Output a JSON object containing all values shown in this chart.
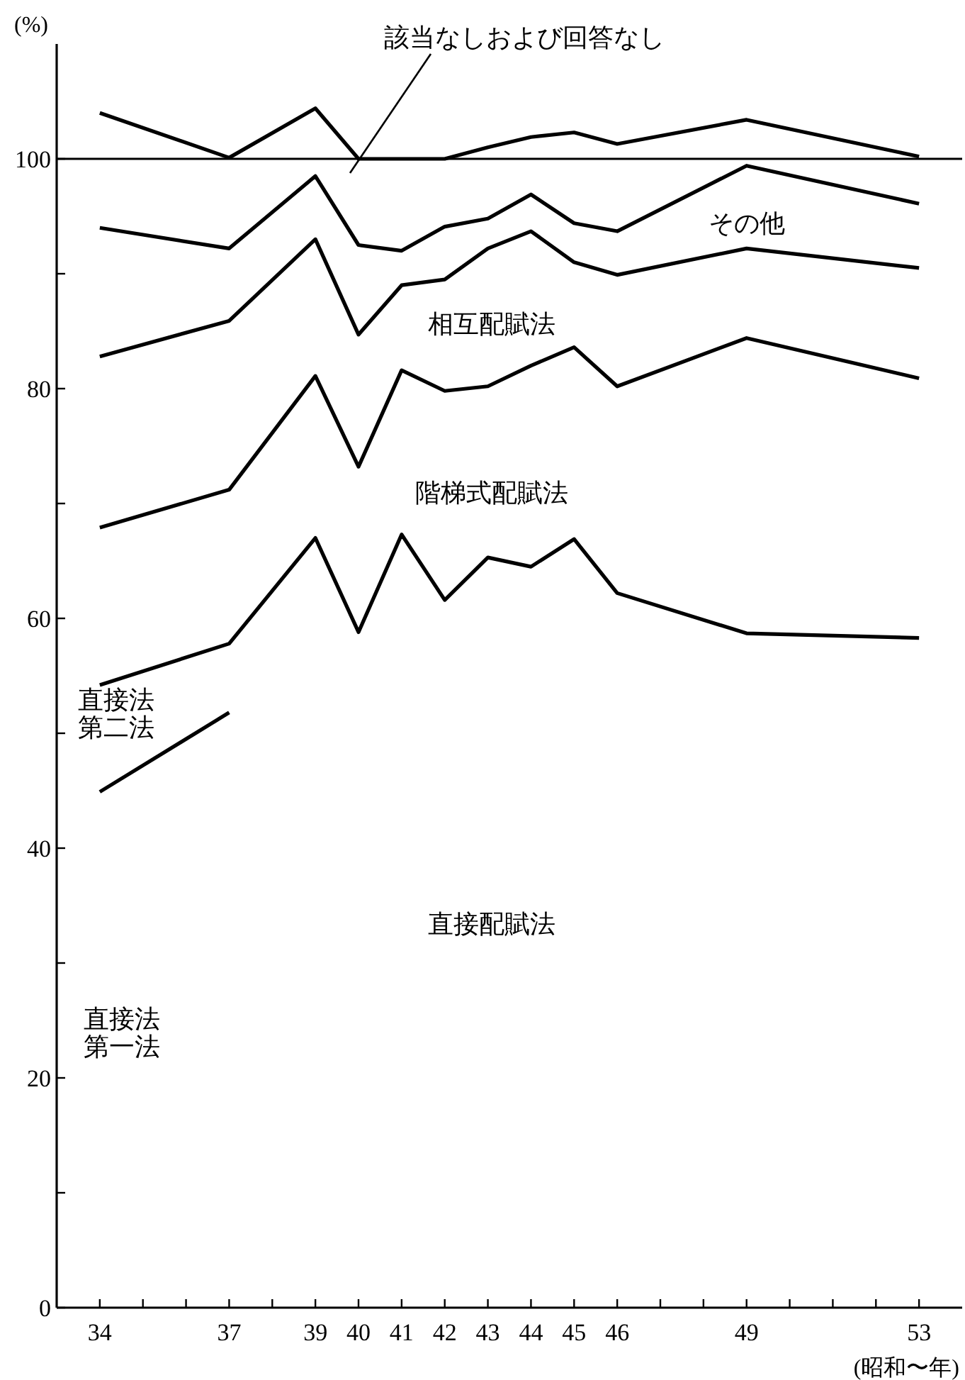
{
  "chart_data": {
    "type": "line",
    "ylabel": "(%)",
    "xlabel": "(昭和〜年)",
    "x": [
      34,
      37,
      39,
      40,
      41,
      42,
      43,
      44,
      45,
      46,
      49,
      53
    ],
    "series": [
      {
        "color": "#000000",
        "values": [
          104.0,
          100.1,
          104.4,
          100,
          100,
          100,
          101.0,
          101.9,
          102.3,
          101.3,
          103.4,
          100.2
        ]
      },
      {
        "color": "#000000",
        "values": [
          94.0,
          92.2,
          98.5,
          92.5,
          92.0,
          94.1,
          94.8,
          96.9,
          94.4,
          93.7,
          99.4,
          96.1
        ]
      },
      {
        "color": "#000000",
        "values": [
          82.8,
          85.9,
          93.0,
          84.7,
          89.0,
          89.5,
          92.2,
          93.7,
          91.0,
          89.9,
          92.2,
          90.5
        ]
      },
      {
        "color": "#000000",
        "values": [
          67.9,
          71.2,
          81.1,
          73.2,
          81.6,
          79.8,
          80.2,
          82.0,
          83.6,
          80.2,
          84.4,
          80.9
        ]
      },
      {
        "color": "#000000",
        "values": [
          54.2,
          57.8,
          67.0,
          58.8,
          67.3,
          61.6,
          65.3,
          64.5,
          66.9,
          62.2,
          58.7,
          58.3
        ]
      },
      {
        "color": "#000000",
        "x": [
          34,
          37
        ],
        "values": [
          44.9,
          51.8
        ]
      }
    ],
    "ref_lines": [
      {
        "axis": "y",
        "value": 100,
        "color": "#000000"
      }
    ],
    "annotations": [
      "該当なしおよび回答なし",
      "その他",
      "相互配賦法",
      "階梯式配賦法",
      "直接法第二法",
      "直接配賦法",
      "直接法第一法"
    ],
    "xlim": [
      33,
      54
    ],
    "ylim": [
      0,
      110
    ],
    "xticks": [
      34,
      {
        "value": 35,
        "label": null
      },
      {
        "value": 36,
        "label": null
      },
      37,
      {
        "value": 38,
        "label": null
      },
      39,
      40,
      41,
      42,
      43,
      44,
      45,
      46,
      {
        "value": 47,
        "label": null
      },
      {
        "value": 48,
        "label": null
      },
      49,
      {
        "value": 50,
        "label": null
      },
      {
        "value": 51,
        "label": null
      },
      {
        "value": 52,
        "label": null
      },
      53
    ],
    "yticks": [
      0,
      {
        "value": 10,
        "label": null
      },
      20,
      {
        "value": 30,
        "label": null
      },
      40,
      {
        "value": 50,
        "label": null
      },
      60,
      {
        "value": 70,
        "label": null
      },
      80,
      {
        "value": 90,
        "label": null
      },
      100
    ],
    "grid": false,
    "marker": "none",
    "line_style": "solid"
  }
}
